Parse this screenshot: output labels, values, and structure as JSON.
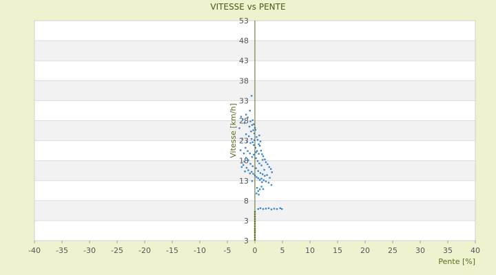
{
  "chart_data": {
    "type": "scatter",
    "title": "VITESSE vs PENTE",
    "xlabel": "Pente [%]",
    "ylabel": "Vitesse [km/h]",
    "xlim": [
      -40,
      40
    ],
    "ylim": [
      -2,
      53
    ],
    "x_ticks": [
      "-40",
      "-35",
      "-30",
      "-25",
      "-20",
      "-15",
      "-10",
      "-5",
      "0",
      "5",
      "10",
      "15",
      "20",
      "25",
      "30",
      "35",
      "40"
    ],
    "y_ticks": [
      "3",
      "3",
      "8",
      "13",
      "18",
      "23",
      "28",
      "33",
      "38",
      "43",
      "48",
      "53"
    ],
    "grid": true,
    "colors": {
      "background": "#eef2cf",
      "band_light": "#ffffff",
      "band_dark": "#f2f2f2",
      "axis": "#5a6a1e",
      "points": "#3a86d0",
      "zero_speed_points": "#6b7a1e"
    },
    "series": [
      {
        "points": [
          [
            -2.5,
            29
          ],
          [
            -2.2,
            28.3
          ],
          [
            -1.9,
            27.4
          ],
          [
            -1.6,
            29.5
          ],
          [
            -1.3,
            28.8
          ],
          [
            -1.0,
            26.5
          ],
          [
            -0.8,
            27.8
          ],
          [
            -0.5,
            26.9
          ],
          [
            -0.3,
            25.6
          ],
          [
            -0.1,
            24.8
          ],
          [
            0.1,
            25.7
          ],
          [
            0.3,
            23.9
          ],
          [
            0.5,
            23.2
          ],
          [
            0.7,
            22.1
          ],
          [
            0.9,
            21.7
          ],
          [
            1.1,
            20.5
          ],
          [
            1.3,
            19.6
          ],
          [
            1.5,
            19.1
          ],
          [
            1.8,
            18.3
          ],
          [
            2.0,
            17.6
          ],
          [
            2.3,
            17.1
          ],
          [
            2.6,
            16.4
          ],
          [
            2.9,
            15.9
          ],
          [
            3.1,
            15.1
          ],
          [
            -2.4,
            16.4
          ],
          [
            -2.1,
            16.9
          ],
          [
            -1.8,
            15.3
          ],
          [
            -1.5,
            16.2
          ],
          [
            -1.2,
            15.6
          ],
          [
            -0.9,
            14.8
          ],
          [
            -0.6,
            15.2
          ],
          [
            -0.3,
            14.7
          ],
          [
            0.0,
            14.3
          ],
          [
            0.3,
            13.9
          ],
          [
            0.6,
            13.6
          ],
          [
            0.9,
            13.2
          ],
          [
            1.2,
            13.5
          ],
          [
            1.6,
            13.1
          ],
          [
            2.0,
            12.8
          ],
          [
            2.5,
            12.5
          ],
          [
            3.0,
            11.9
          ],
          [
            -1.7,
            21.2
          ],
          [
            -1.3,
            20.4
          ],
          [
            -0.9,
            19.8
          ],
          [
            -0.5,
            18.9
          ],
          [
            -0.2,
            19.5
          ],
          [
            0.2,
            18.6
          ],
          [
            0.5,
            17.9
          ],
          [
            0.8,
            17.3
          ],
          [
            1.2,
            16.8
          ],
          [
            -0.6,
            23.4
          ],
          [
            -0.4,
            22.6
          ],
          [
            -0.2,
            21.9
          ],
          [
            0.1,
            21.2
          ],
          [
            0.4,
            20.4
          ],
          [
            0.7,
            19.7
          ],
          [
            -1.1,
            24.1
          ],
          [
            -0.8,
            22.4
          ],
          [
            -2.0,
            19.8
          ],
          [
            -1.6,
            18.7
          ],
          [
            -1.2,
            18.1
          ],
          [
            -0.8,
            17.2
          ],
          [
            -0.4,
            16.6
          ],
          [
            0.2,
            16.1
          ],
          [
            0.6,
            15.4
          ],
          [
            1.0,
            14.9
          ],
          [
            1.4,
            14.6
          ],
          [
            1.8,
            14.2
          ],
          [
            0.4,
            11.2
          ],
          [
            0.6,
            10.4
          ],
          [
            0.9,
            10.8
          ],
          [
            1.2,
            11.5
          ],
          [
            1.5,
            10.9
          ],
          [
            0.3,
            9.8
          ],
          [
            0.7,
            9.5
          ],
          [
            -0.2,
            27.1
          ],
          [
            0.0,
            26.2
          ],
          [
            -0.4,
            28.1
          ],
          [
            -0.7,
            25.3
          ],
          [
            -1.4,
            22.7
          ],
          [
            -2.3,
            23.5
          ],
          [
            -2.6,
            20.6
          ],
          [
            -1.9,
            17.8
          ],
          [
            0.8,
            24.3
          ],
          [
            1.0,
            22.8
          ],
          [
            1.4,
            18.2
          ],
          [
            1.7,
            15.7
          ],
          [
            2.2,
            14.4
          ],
          [
            2.7,
            13.7
          ],
          [
            -2.8,
            26.1
          ],
          [
            -0.9,
            30.5
          ],
          [
            -1.6,
            24.6
          ],
          [
            -0.1,
            23.1
          ],
          [
            0.2,
            20.1
          ],
          [
            -0.5,
            12.9
          ],
          [
            1.3,
            12.6
          ],
          [
            -0.6,
            34.2
          ],
          [
            0.6,
            5.9
          ],
          [
            1.0,
            6.1
          ],
          [
            1.5,
            5.9
          ],
          [
            2.0,
            6.0
          ],
          [
            2.5,
            6.1
          ],
          [
            3.0,
            5.8
          ],
          [
            3.5,
            6.0
          ],
          [
            4.0,
            5.9
          ],
          [
            4.6,
            6.1
          ],
          [
            4.9,
            5.9
          ]
        ]
      },
      {
        "points": [
          [
            0,
            -1.8
          ],
          [
            0,
            -1.2
          ],
          [
            0,
            -0.6
          ],
          [
            0,
            0.0
          ],
          [
            0,
            0.5
          ],
          [
            0,
            1.0
          ],
          [
            0,
            1.6
          ],
          [
            0,
            2.2
          ],
          [
            0,
            2.8
          ],
          [
            0,
            3.4
          ],
          [
            0,
            4.0
          ],
          [
            0,
            4.6
          ],
          [
            0,
            5.2
          ]
        ]
      }
    ]
  }
}
